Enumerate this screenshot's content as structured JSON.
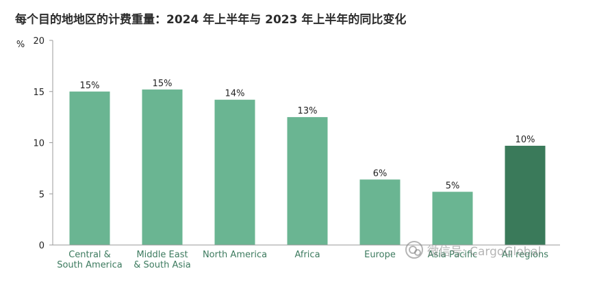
{
  "chart_data": {
    "type": "bar",
    "title": "每个目的地地区的计费重量：2024 年上半年与 2023 年上半年的同比变化",
    "ylabel": "%",
    "xlabel": "",
    "ylim": [
      0,
      20
    ],
    "yticks": [
      0,
      5,
      10,
      15,
      20
    ],
    "grid": false,
    "categories": [
      [
        "Central &",
        "South America"
      ],
      [
        "Middle East",
        "& South Asia"
      ],
      [
        "North America"
      ],
      [
        "Africa"
      ],
      [
        "Europe"
      ],
      [
        "Asia Pacific"
      ],
      [
        "All regions"
      ]
    ],
    "values": [
      15,
      15.2,
      14.2,
      12.5,
      6.4,
      5.2,
      9.7
    ],
    "data_labels": [
      "15%",
      "15%",
      "14%",
      "13%",
      "6%",
      "5%",
      "10%"
    ],
    "colors": [
      "#6ab592",
      "#6ab592",
      "#6ab592",
      "#6ab592",
      "#6ab592",
      "#6ab592",
      "#3a7a5a"
    ],
    "axis_color": "#999999"
  },
  "watermark": {
    "icon": "wechat-icon",
    "text": "微信号: CargoGlobal"
  }
}
